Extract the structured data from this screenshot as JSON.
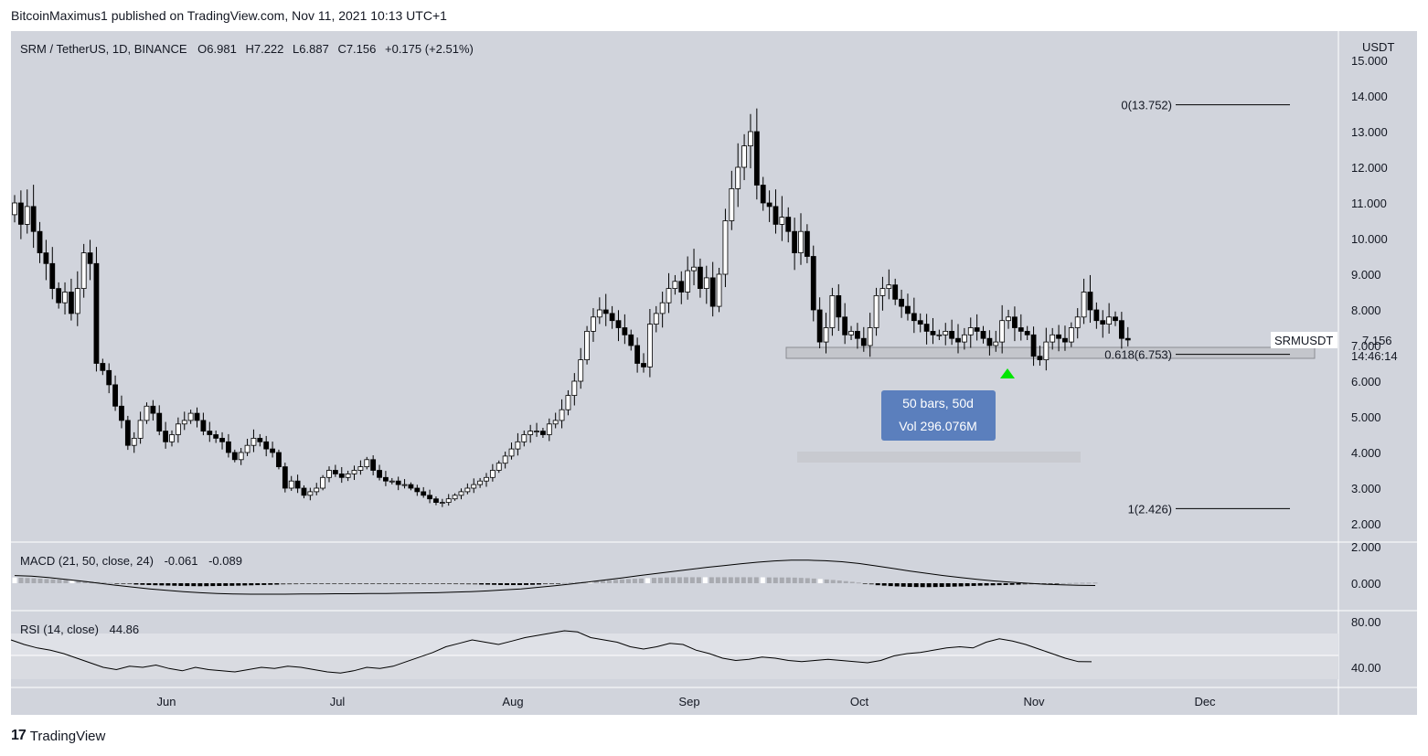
{
  "header": {
    "publisher_line": "BitcoinMaximus1 published on TradingView.com, Nov 11, 2021 10:13 UTC+1"
  },
  "footer": {
    "brand_mark": "17",
    "brand_name": "TradingView"
  },
  "symbol_legend": {
    "symbol": "SRM / TetherUS, 1D, BINANCE",
    "o_label": "O",
    "o_value": "6.981",
    "h_label": "H",
    "h_value": "7.222",
    "l_label": "L",
    "l_value": "6.887",
    "c_label": "C",
    "c_value": "7.156",
    "change": "+0.175 (+2.51%)"
  },
  "price_scale": {
    "currency": "USDT",
    "ticks": [
      "15.000",
      "14.000",
      "13.000",
      "12.000",
      "11.000",
      "10.000",
      "9.000",
      "8.000",
      "7.000",
      "6.000",
      "5.000",
      "4.000",
      "3.000",
      "2.000"
    ],
    "last_price_badge": {
      "symbol": "SRMUSDT",
      "price": "7.156",
      "countdown": "14:46:14"
    }
  },
  "time_axis": {
    "labels": [
      "Jun",
      "Jul",
      "Aug",
      "Sep",
      "Oct",
      "Nov",
      "Dec"
    ]
  },
  "fib": {
    "levels": [
      {
        "label": "0(13.752)",
        "value": 13.752
      },
      {
        "label": "0.618(6.753)",
        "value": 6.753
      },
      {
        "label": "1(2.426)",
        "value": 2.426
      }
    ]
  },
  "measure_tool": {
    "bars_line": "50 bars, 50d",
    "volume_line": "Vol 296.076M"
  },
  "macd": {
    "legend_label": "MACD (21, 50, close, 24)",
    "value1": "-0.061",
    "value2": "-0.089",
    "ticks": [
      "2.000",
      "0.000"
    ]
  },
  "rsi": {
    "legend_label": "RSI (14, close)",
    "value": "44.86",
    "ticks": [
      "80.00",
      "40.00"
    ]
  },
  "colors": {
    "chart_bg": "#d1d4dc",
    "band": "#dfe1e7",
    "candle_up": "#ffffff",
    "candle_down": "#000000",
    "measure_box": "#5b7fbd",
    "arrow": "#00e600"
  },
  "chart_data": [
    {
      "type": "candlestick",
      "title": "SRM / TetherUS, 1D, BINANCE",
      "x_start": "2021-05-11",
      "x_labels": [
        "Jun",
        "Jul",
        "Aug",
        "Sep",
        "Oct",
        "Nov",
        "Dec"
      ],
      "ylabel": "USDT",
      "ylim": [
        1.7,
        15.4
      ],
      "grid": false,
      "closes": [
        11.0,
        10.4,
        10.9,
        10.2,
        9.6,
        9.3,
        8.6,
        8.2,
        8.5,
        7.9,
        8.6,
        9.6,
        9.3,
        6.5,
        6.3,
        5.9,
        5.3,
        4.9,
        4.2,
        4.4,
        4.9,
        5.3,
        5.1,
        4.6,
        4.3,
        4.5,
        4.8,
        4.9,
        5.1,
        4.9,
        4.6,
        4.5,
        4.4,
        4.3,
        4.0,
        3.8,
        4.0,
        4.2,
        4.4,
        4.3,
        4.1,
        4.0,
        3.6,
        3.0,
        3.2,
        3.0,
        2.8,
        2.9,
        3.0,
        3.3,
        3.5,
        3.4,
        3.3,
        3.4,
        3.5,
        3.6,
        3.8,
        3.5,
        3.3,
        3.2,
        3.2,
        3.1,
        3.1,
        3.0,
        2.9,
        2.8,
        2.7,
        2.6,
        2.6,
        2.7,
        2.8,
        2.9,
        3.0,
        3.1,
        3.2,
        3.3,
        3.5,
        3.7,
        3.9,
        4.1,
        4.3,
        4.5,
        4.6,
        4.6,
        4.5,
        4.8,
        4.9,
        5.2,
        5.6,
        6.0,
        6.6,
        7.4,
        7.8,
        8.0,
        7.9,
        7.7,
        7.5,
        7.3,
        7.0,
        6.5,
        6.4,
        7.6,
        7.9,
        8.2,
        8.6,
        8.8,
        8.5,
        9.1,
        9.2,
        8.6,
        8.9,
        8.1,
        9.0,
        10.5,
        11.4,
        12.0,
        12.6,
        13.0,
        11.5,
        11.0,
        10.9,
        10.4,
        10.6,
        10.2,
        9.6,
        10.2,
        9.5,
        8.0,
        7.1,
        7.5,
        8.4,
        7.8,
        7.3,
        7.4,
        7.2,
        7.0,
        7.5,
        8.4,
        8.6,
        8.7,
        8.3,
        8.1,
        7.9,
        7.7,
        7.6,
        7.4,
        7.3,
        7.3,
        7.4,
        7.2,
        7.1,
        7.3,
        7.5,
        7.4,
        7.2,
        7.0,
        7.1,
        7.7,
        7.8,
        7.5,
        7.4,
        7.3,
        6.7,
        6.6,
        7.1,
        7.3,
        7.2,
        7.1,
        7.5,
        7.8,
        8.5,
        8.0,
        7.7,
        7.6,
        7.8,
        7.7,
        7.2,
        7.156
      ]
    },
    {
      "type": "line",
      "title": "MACD (21, 50, close, 24)",
      "ylim": [
        -0.6,
        1.5
      ],
      "macd": [
        0.55,
        0.5,
        0.4,
        0.3,
        0.18,
        0.05,
        -0.08,
        -0.2,
        -0.3,
        -0.38,
        -0.45,
        -0.5,
        -0.52,
        -0.53,
        -0.52,
        -0.5,
        -0.48,
        -0.46,
        -0.45,
        -0.44,
        -0.43,
        -0.42,
        -0.41,
        -0.4,
        -0.4,
        -0.4,
        -0.39,
        -0.38,
        -0.36,
        -0.34,
        -0.3,
        -0.22,
        -0.12,
        0.0,
        0.12,
        0.25,
        0.38,
        0.5,
        0.62,
        0.72,
        0.8,
        0.88,
        0.95,
        1.02,
        1.08,
        1.12,
        1.15,
        1.12,
        1.05,
        0.95,
        0.8,
        0.6,
        0.45,
        0.32,
        0.22,
        0.14,
        0.08,
        0.04,
        0.0,
        -0.03,
        -0.05,
        -0.06,
        -0.06,
        -0.06,
        -0.061
      ],
      "signal": [
        0.3,
        0.28,
        0.22,
        0.15,
        0.08,
        0.0,
        -0.08,
        -0.15,
        -0.22,
        -0.28,
        -0.33,
        -0.37,
        -0.4,
        -0.42,
        -0.43,
        -0.43,
        -0.43,
        -0.42,
        -0.42,
        -0.41,
        -0.41,
        -0.4,
        -0.4,
        -0.39,
        -0.38,
        -0.37,
        -0.35,
        -0.33,
        -0.3,
        -0.26,
        -0.22,
        -0.16,
        -0.1,
        -0.03,
        0.05,
        0.13,
        0.21,
        0.3,
        0.38,
        0.46,
        0.54,
        0.62,
        0.69,
        0.76,
        0.82,
        0.87,
        0.9,
        0.9,
        0.88,
        0.84,
        0.77,
        0.68,
        0.58,
        0.48,
        0.39,
        0.3,
        0.22,
        0.15,
        0.09,
        0.04,
        0.0,
        -0.04,
        -0.06,
        -0.08,
        -0.089
      ]
    },
    {
      "type": "line",
      "title": "RSI (14, close)",
      "ylim": [
        30,
        90
      ],
      "values": [
        64,
        60,
        57,
        55,
        52,
        48,
        44,
        40,
        38,
        41,
        40,
        42,
        39,
        37,
        40,
        38,
        37,
        36,
        38,
        40,
        39,
        41,
        40,
        38,
        36,
        35,
        37,
        40,
        39,
        41,
        45,
        49,
        53,
        58,
        61,
        64,
        62,
        60,
        63,
        66,
        68,
        70,
        72,
        71,
        66,
        64,
        62,
        58,
        56,
        58,
        61,
        60,
        55,
        52,
        48,
        46,
        47,
        49,
        48,
        46,
        45,
        46,
        47,
        46,
        45,
        44,
        46,
        50,
        52,
        53,
        55,
        57,
        58,
        57,
        62,
        65,
        63,
        60,
        56,
        52,
        48,
        45,
        44.86
      ]
    }
  ]
}
